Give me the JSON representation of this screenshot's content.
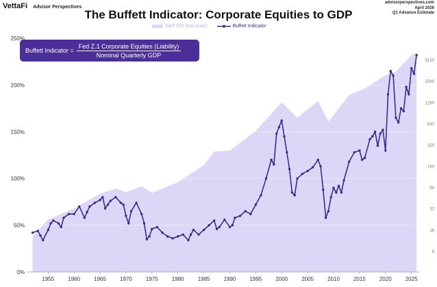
{
  "header": {
    "brand": "VettaFi",
    "brand_sub": "Advisor Perspectives",
    "source_lines": [
      "advisorperspectives.com",
      "April 2026",
      "Q1 Advance Estimate"
    ]
  },
  "chart_data": {
    "type": "line",
    "title": "The Buffett Indicator: Corporate Equities to GDP",
    "formula": {
      "lhs": "Buffett Indicator =",
      "numerator": "Fed Z.1 Corporate Equities (Liability)",
      "denominator": "Nominal Quarterly GDP"
    },
    "legend": [
      "S&P 500 (log scale)",
      "Buffett Indicator"
    ],
    "legend_position": "top-center",
    "xlim": [
      1951,
      2026.5
    ],
    "x_ticks": [
      1955,
      1960,
      1965,
      1970,
      1975,
      1980,
      1985,
      1990,
      1995,
      2000,
      2005,
      2010,
      2015,
      2020,
      2025
    ],
    "x_tick_labels": [
      "1955",
      "1960",
      "1965",
      "1970",
      "1975",
      "1980",
      "1985",
      "1990",
      "1995",
      "2000",
      "2005",
      "2010",
      "2015",
      "2020",
      "2025"
    ],
    "ylim": [
      0,
      250
    ],
    "y_ticks": [
      0,
      50,
      100,
      150,
      200,
      250
    ],
    "y_tick_labels": [
      "0%",
      "50%",
      "100%",
      "150%",
      "200%",
      "250%"
    ],
    "y2_scale": "log",
    "y2_ticks": [
      1,
      2,
      4,
      8,
      16,
      32,
      64,
      128,
      256,
      512
    ],
    "y2_tick_labels": [
      "8",
      "16",
      "32",
      "64",
      "160",
      "320",
      "640",
      "1280",
      "2560",
      "5120"
    ],
    "colors": {
      "area": "#ddd6f6",
      "line": "#3b2a88",
      "formula_box": "#4b2e98"
    },
    "series": [
      {
        "name": "Buffett Indicator",
        "x": [
          1952,
          1953,
          1953.5,
          1954,
          1955,
          1955.5,
          1956,
          1957,
          1957.5,
          1958,
          1959,
          1960,
          1961,
          1962,
          1962.5,
          1963,
          1964,
          1965,
          1965.5,
          1966,
          1966.5,
          1967,
          1968,
          1969,
          1969.5,
          1970,
          1970.5,
          1971,
          1972,
          1973,
          1973.5,
          1974,
          1974.5,
          1975,
          1976,
          1977,
          1978,
          1979,
          1980,
          1981,
          1982,
          1982.5,
          1983,
          1984,
          1985,
          1986,
          1987,
          1987.5,
          1988,
          1989,
          1990,
          1990.5,
          1991,
          1992,
          1993,
          1994,
          1995,
          1996,
          1997,
          1998,
          1998.5,
          1999,
          1999.5,
          2000,
          2000.5,
          2001,
          2001.5,
          2002,
          2002.5,
          2003,
          2004,
          2005,
          2006,
          2007,
          2007.5,
          2008,
          2008.5,
          2009,
          2009.5,
          2010,
          2010.5,
          2011,
          2011.5,
          2012,
          2013,
          2014,
          2015,
          2015.5,
          2016,
          2017,
          2017.5,
          2018,
          2018.5,
          2019,
          2019.5,
          2020,
          2020.5,
          2021,
          2021.5,
          2022,
          2022.5,
          2023,
          2023.5,
          2024,
          2024.5,
          2025,
          2025.5,
          2026
        ],
        "values": [
          42,
          44,
          39,
          34,
          45,
          52,
          55,
          52,
          48,
          58,
          62,
          62,
          70,
          58,
          64,
          70,
          74,
          77,
          80,
          68,
          72,
          76,
          80,
          74,
          72,
          60,
          52,
          65,
          74,
          62,
          52,
          35,
          38,
          46,
          48,
          42,
          38,
          36,
          38,
          40,
          34,
          40,
          45,
          40,
          45,
          50,
          55,
          46,
          48,
          56,
          48,
          50,
          58,
          60,
          65,
          62,
          72,
          82,
          100,
          120,
          115,
          148,
          155,
          162,
          145,
          128,
          110,
          85,
          82,
          100,
          105,
          108,
          112,
          120,
          113,
          88,
          58,
          65,
          80,
          90,
          85,
          92,
          85,
          98,
          118,
          128,
          130,
          120,
          122,
          142,
          145,
          150,
          135,
          148,
          152,
          130,
          190,
          215,
          210,
          165,
          160,
          175,
          172,
          198,
          190,
          218,
          212,
          232
        ],
        "marker": "circle"
      },
      {
        "name": "S&P 500 (log scale)",
        "x": [
          1952,
          1955,
          1960,
          1965,
          1968,
          1970,
          1973,
          1975,
          1980,
          1985,
          1987,
          1990,
          1995,
          2000,
          2003,
          2007,
          2009,
          2013,
          2016,
          2020,
          2022,
          2025,
          2026
        ],
        "values": [
          24,
          40,
          56,
          88,
          103,
          92,
          110,
          90,
          125,
          210,
          320,
          330,
          600,
          1440,
          900,
          1500,
          800,
          1800,
          2200,
          3300,
          3700,
          6100,
          6600
        ]
      }
    ]
  }
}
